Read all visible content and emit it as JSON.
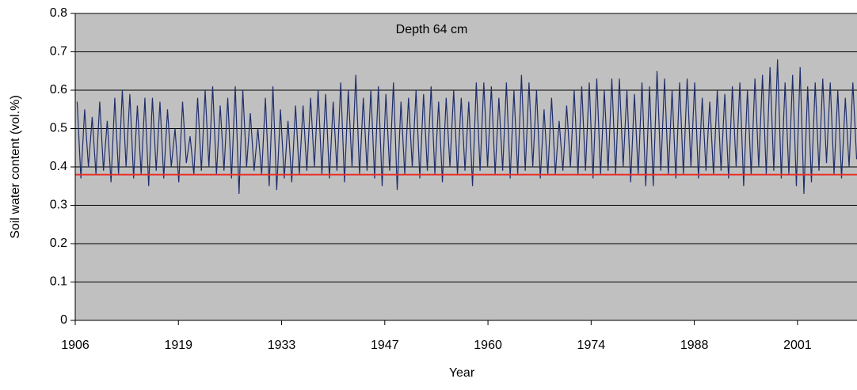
{
  "chart_data": {
    "type": "line",
    "annotation": "Depth 64 cm",
    "x_label": "Year",
    "y_label": "Soil water content (vol.%)",
    "color": "#1f2d6b",
    "background": "#c0c0c0",
    "grid": true,
    "reference_line": {
      "value": 0.38,
      "color": "#e8302a"
    },
    "xlim": [
      1906,
      2009.8
    ],
    "xticks": [
      {
        "value": 1906,
        "label": "1906"
      },
      {
        "value": 1919.7,
        "label": "1919"
      },
      {
        "value": 1933.4,
        "label": "1933"
      },
      {
        "value": 1947.1,
        "label": "1947"
      },
      {
        "value": 1960.8,
        "label": "1960"
      },
      {
        "value": 1974.5,
        "label": "1974"
      },
      {
        "value": 1988.2,
        "label": "1988"
      },
      {
        "value": 2001.9,
        "label": "2001"
      }
    ],
    "ylim": [
      0,
      0.8
    ],
    "yticks": [
      0,
      0.1,
      0.2,
      0.3,
      0.4,
      0.5,
      0.6,
      0.7,
      0.8
    ],
    "x": [
      1906.25,
      1906.75,
      1907.25,
      1907.75,
      1908.25,
      1908.75,
      1909.25,
      1909.75,
      1910.25,
      1910.75,
      1911.25,
      1911.75,
      1912.25,
      1912.75,
      1913.25,
      1913.75,
      1914.25,
      1914.75,
      1915.25,
      1915.75,
      1916.25,
      1916.75,
      1917.25,
      1917.75,
      1918.25,
      1918.75,
      1919.25,
      1919.75,
      1920.25,
      1920.75,
      1921.25,
      1921.75,
      1922.25,
      1922.75,
      1923.25,
      1923.75,
      1924.25,
      1924.75,
      1925.25,
      1925.75,
      1926.25,
      1926.75,
      1927.25,
      1927.75,
      1928.25,
      1928.75,
      1929.25,
      1929.75,
      1930.25,
      1930.75,
      1931.25,
      1931.75,
      1932.25,
      1932.75,
      1933.25,
      1933.75,
      1934.25,
      1934.75,
      1935.25,
      1935.75,
      1936.25,
      1936.75,
      1937.25,
      1937.75,
      1938.25,
      1938.75,
      1939.25,
      1939.75,
      1940.25,
      1940.75,
      1941.25,
      1941.75,
      1942.25,
      1942.75,
      1943.25,
      1943.75,
      1944.25,
      1944.75,
      1945.25,
      1945.75,
      1946.25,
      1946.75,
      1947.25,
      1947.75,
      1948.25,
      1948.75,
      1949.25,
      1949.75,
      1950.25,
      1950.75,
      1951.25,
      1951.75,
      1952.25,
      1952.75,
      1953.25,
      1953.75,
      1954.25,
      1954.75,
      1955.25,
      1955.75,
      1956.25,
      1956.75,
      1957.25,
      1957.75,
      1958.25,
      1958.75,
      1959.25,
      1959.75,
      1960.25,
      1960.75,
      1961.25,
      1961.75,
      1962.25,
      1962.75,
      1963.25,
      1963.75,
      1964.25,
      1964.75,
      1965.25,
      1965.75,
      1966.25,
      1966.75,
      1967.25,
      1967.75,
      1968.25,
      1968.75,
      1969.25,
      1969.75,
      1970.25,
      1970.75,
      1971.25,
      1971.75,
      1972.25,
      1972.75,
      1973.25,
      1973.75,
      1974.25,
      1974.75,
      1975.25,
      1975.75,
      1976.25,
      1976.75,
      1977.25,
      1977.75,
      1978.25,
      1978.75,
      1979.25,
      1979.75,
      1980.25,
      1980.75,
      1981.25,
      1981.75,
      1982.25,
      1982.75,
      1983.25,
      1983.75,
      1984.25,
      1984.75,
      1985.25,
      1985.75,
      1986.25,
      1986.75,
      1987.25,
      1987.75,
      1988.25,
      1988.75,
      1989.25,
      1989.75,
      1990.25,
      1990.75,
      1991.25,
      1991.75,
      1992.25,
      1992.75,
      1993.25,
      1993.75,
      1994.25,
      1994.75,
      1995.25,
      1995.75,
      1996.25,
      1996.75,
      1997.25,
      1997.75,
      1998.25,
      1998.75,
      1999.25,
      1999.75,
      2000.25,
      2000.75,
      2001.25,
      2001.75,
      2002.25,
      2002.75,
      2003.25,
      2003.75,
      2004.25,
      2004.75,
      2005.25,
      2005.75,
      2006.25,
      2006.75,
      2007.25,
      2007.75,
      2008.25,
      2008.75,
      2009.25,
      2009.75
    ],
    "values": [
      0.57,
      0.37,
      0.55,
      0.4,
      0.53,
      0.38,
      0.57,
      0.39,
      0.52,
      0.36,
      0.58,
      0.38,
      0.6,
      0.4,
      0.59,
      0.37,
      0.56,
      0.38,
      0.58,
      0.35,
      0.58,
      0.39,
      0.57,
      0.37,
      0.55,
      0.4,
      0.5,
      0.36,
      0.57,
      0.41,
      0.48,
      0.38,
      0.58,
      0.39,
      0.6,
      0.4,
      0.61,
      0.38,
      0.56,
      0.39,
      0.58,
      0.37,
      0.61,
      0.33,
      0.6,
      0.4,
      0.54,
      0.39,
      0.5,
      0.38,
      0.58,
      0.35,
      0.61,
      0.34,
      0.55,
      0.37,
      0.52,
      0.36,
      0.56,
      0.38,
      0.56,
      0.39,
      0.58,
      0.4,
      0.6,
      0.38,
      0.59,
      0.37,
      0.57,
      0.39,
      0.62,
      0.36,
      0.6,
      0.4,
      0.64,
      0.38,
      0.58,
      0.39,
      0.6,
      0.37,
      0.61,
      0.35,
      0.59,
      0.39,
      0.62,
      0.34,
      0.57,
      0.38,
      0.58,
      0.4,
      0.6,
      0.37,
      0.59,
      0.39,
      0.61,
      0.38,
      0.57,
      0.36,
      0.58,
      0.4,
      0.6,
      0.38,
      0.58,
      0.39,
      0.57,
      0.35,
      0.62,
      0.39,
      0.62,
      0.4,
      0.61,
      0.38,
      0.58,
      0.39,
      0.62,
      0.37,
      0.6,
      0.38,
      0.64,
      0.39,
      0.62,
      0.4,
      0.6,
      0.37,
      0.55,
      0.38,
      0.58,
      0.38,
      0.52,
      0.39,
      0.56,
      0.4,
      0.6,
      0.38,
      0.61,
      0.39,
      0.62,
      0.37,
      0.63,
      0.38,
      0.6,
      0.39,
      0.63,
      0.38,
      0.63,
      0.4,
      0.6,
      0.36,
      0.59,
      0.38,
      0.62,
      0.35,
      0.61,
      0.35,
      0.65,
      0.39,
      0.63,
      0.38,
      0.6,
      0.37,
      0.62,
      0.38,
      0.63,
      0.4,
      0.62,
      0.37,
      0.58,
      0.39,
      0.57,
      0.38,
      0.6,
      0.39,
      0.59,
      0.37,
      0.61,
      0.4,
      0.62,
      0.35,
      0.6,
      0.38,
      0.63,
      0.4,
      0.64,
      0.38,
      0.66,
      0.39,
      0.68,
      0.37,
      0.62,
      0.38,
      0.64,
      0.35,
      0.66,
      0.33,
      0.61,
      0.36,
      0.62,
      0.39,
      0.63,
      0.41,
      0.62,
      0.38,
      0.6,
      0.37,
      0.58,
      0.4,
      0.62,
      0.42
    ]
  }
}
